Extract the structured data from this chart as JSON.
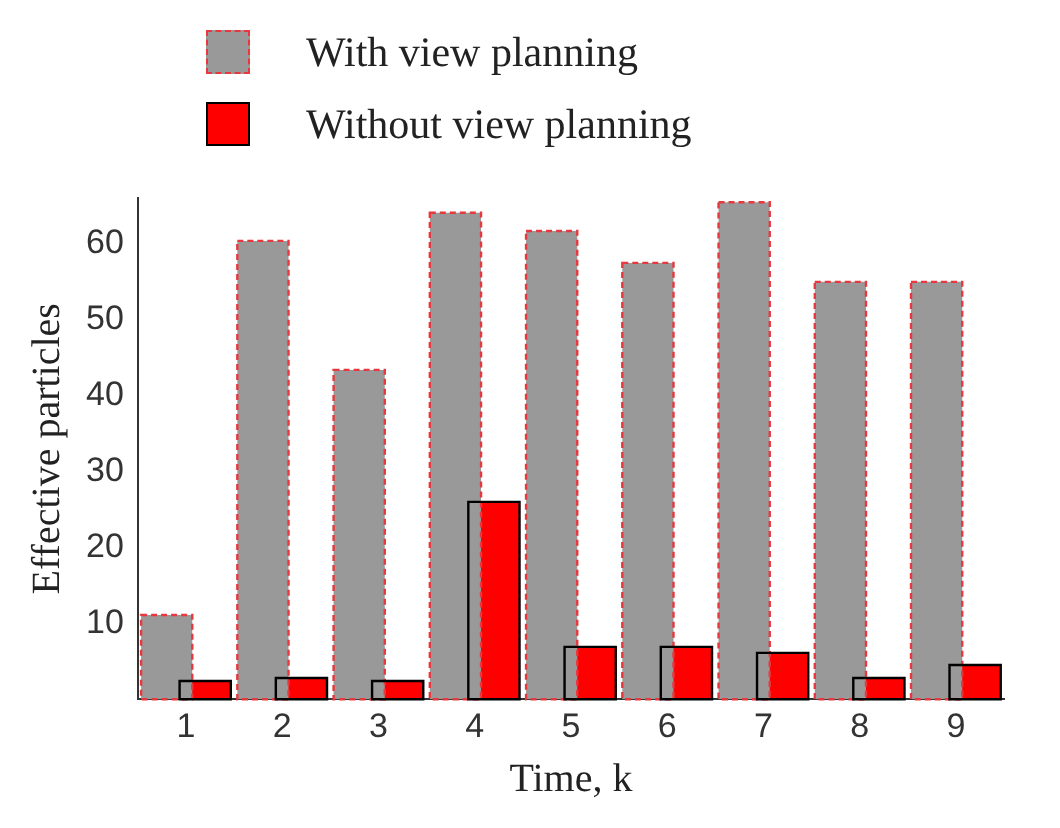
{
  "chart_data": {
    "type": "bar",
    "xlabel": "Time, k",
    "ylabel": "Effective particles",
    "categories": [
      "1",
      "2",
      "3",
      "4",
      "5",
      "6",
      "7",
      "8",
      "9"
    ],
    "series": [
      {
        "name": "With view planning",
        "color": "#999999",
        "line_style": "dashed",
        "values": [
          11.1,
          60.4,
          43.4,
          64.1,
          61.7,
          57.5,
          65.5,
          55,
          55
        ]
      },
      {
        "name": "Without view planning",
        "color": "#ff0000",
        "values": [
          2.4,
          2.8,
          2.4,
          26,
          6.9,
          6.9,
          6.1,
          2.8,
          4.5
        ]
      }
    ],
    "ylim": [
      0,
      66
    ],
    "yticks": [
      10,
      20,
      30,
      40,
      50,
      60
    ],
    "grid": false,
    "legend": "top"
  }
}
